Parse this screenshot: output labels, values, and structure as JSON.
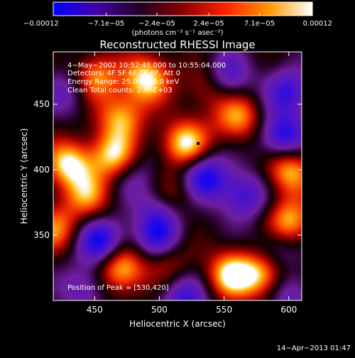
{
  "chart_data": {
    "type": "heatmap",
    "title": "Reconstructed RHESSI Image",
    "xlabel": "Heliocentric X (arcsec)",
    "ylabel": "Heliocentric Y (arcsec)",
    "xlim": [
      418,
      610
    ],
    "ylim": [
      300,
      490
    ],
    "x_ticks": [
      450,
      500,
      550,
      600
    ],
    "y_ticks": [
      350,
      400,
      450
    ],
    "colorbar": {
      "range": [
        -0.00012,
        0.00012
      ],
      "tick_values": [
        -0.00012,
        -7.1e-05,
        -2.4e-05,
        2.4e-05,
        7.1e-05,
        0.00012
      ],
      "tick_labels": [
        "−0.00012",
        "−7.1e−05",
        "−2.4e−05",
        "2.4e−05",
        "7.1e−05",
        "0.00012"
      ],
      "unit_label": "(photons cm⁻² s⁻¹ asec⁻²)",
      "colors": [
        "#0000ff",
        "#4400aa",
        "#220022",
        "#880000",
        "#ff2200",
        "#ff9900",
        "#ffffff"
      ]
    },
    "annotations": [
      "4−May−2002 10:52:48.000 to 10:55:04.000",
      "Detectors: 4F 5F 6F 7F 8F, Att 0",
      "Energy Range: 25.0 − 50.0 keV",
      "Clean    Total counts: 2.06E+03"
    ],
    "peak_label": "Position of Peak = [530,420]",
    "peak_position": [
      530,
      420
    ],
    "blobs": [
      {
        "x": 430,
        "y": 405,
        "v": 1.0
      },
      {
        "x": 465,
        "y": 410,
        "v": 0.9
      },
      {
        "x": 445,
        "y": 380,
        "v": 0.7
      },
      {
        "x": 470,
        "y": 440,
        "v": 0.8
      },
      {
        "x": 490,
        "y": 470,
        "v": 1.0
      },
      {
        "x": 520,
        "y": 420,
        "v": 1.0
      },
      {
        "x": 560,
        "y": 440,
        "v": 0.8
      },
      {
        "x": 600,
        "y": 400,
        "v": 0.9
      },
      {
        "x": 600,
        "y": 360,
        "v": 0.9
      },
      {
        "x": 580,
        "y": 320,
        "v": 0.9
      },
      {
        "x": 555,
        "y": 320,
        "v": 1.0
      },
      {
        "x": 470,
        "y": 325,
        "v": 1.0
      },
      {
        "x": 505,
        "y": 335,
        "v": 0.7
      },
      {
        "x": 420,
        "y": 355,
        "v": 0.7
      },
      {
        "x": 450,
        "y": 470,
        "v": 0.8
      },
      {
        "x": 540,
        "y": 465,
        "v": 0.7
      },
      {
        "x": 510,
        "y": 380,
        "v": 0.5
      },
      {
        "x": 455,
        "y": 345,
        "v": -1.0
      },
      {
        "x": 500,
        "y": 345,
        "v": -1.0
      },
      {
        "x": 535,
        "y": 395,
        "v": -0.9
      },
      {
        "x": 550,
        "y": 470,
        "v": -0.9
      },
      {
        "x": 595,
        "y": 425,
        "v": -0.9
      },
      {
        "x": 600,
        "y": 460,
        "v": -0.7
      },
      {
        "x": 520,
        "y": 300,
        "v": -0.7
      },
      {
        "x": 500,
        "y": 370,
        "v": -0.6
      },
      {
        "x": 565,
        "y": 380,
        "v": -0.7
      },
      {
        "x": 430,
        "y": 460,
        "v": -0.5
      },
      {
        "x": 590,
        "y": 340,
        "v": -0.5
      },
      {
        "x": 480,
        "y": 395,
        "v": -0.4
      },
      {
        "x": 440,
        "y": 310,
        "v": -0.5
      },
      {
        "x": 600,
        "y": 305,
        "v": -0.5
      }
    ]
  },
  "footer": {
    "timestamp": "14−Apr−2013 01:47"
  }
}
